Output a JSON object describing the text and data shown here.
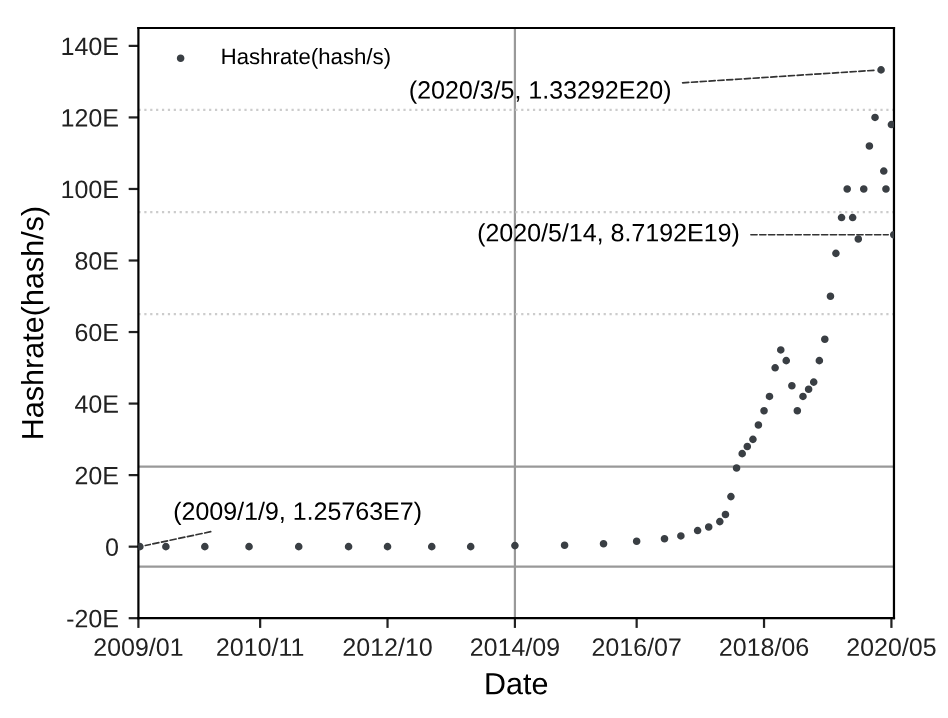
{
  "chart_data": {
    "type": "scatter",
    "xlabel": "Date",
    "ylabel": "Hashrate(hash/s)",
    "series": [
      {
        "name": "Hashrate(hash/s)",
        "color": "#3a3f44",
        "x": [
          "2009-01-09",
          "2009-06-01",
          "2010-01-01",
          "2010-09-01",
          "2011-06-01",
          "2012-03-01",
          "2012-10-01",
          "2013-06-01",
          "2014-01-01",
          "2014-09-01",
          "2015-06-01",
          "2016-01-01",
          "2016-07-01",
          "2016-12-01",
          "2017-03-01",
          "2017-06-01",
          "2017-08-01",
          "2017-10-01",
          "2017-11-01",
          "2017-12-01",
          "2018-01-01",
          "2018-02-01",
          "2018-03-01",
          "2018-04-01",
          "2018-05-01",
          "2018-06-01",
          "2018-07-01",
          "2018-08-01",
          "2018-09-01",
          "2018-10-01",
          "2018-11-01",
          "2018-12-01",
          "2019-01-01",
          "2019-02-01",
          "2019-03-01",
          "2019-04-01",
          "2019-05-01",
          "2019-06-01",
          "2019-07-01",
          "2019-08-01",
          "2019-09-01",
          "2019-10-01",
          "2019-11-01",
          "2019-12-01",
          "2020-01-01",
          "2020-02-01",
          "2020-03-05",
          "2020-03-20",
          "2020-04-01",
          "2020-05-01",
          "2020-05-14"
        ],
        "values": [
          1.25763e-11,
          0,
          0,
          0,
          0,
          0,
          0,
          0,
          0,
          0.3,
          0.4,
          0.8,
          1.5,
          2.2,
          3,
          4.5,
          5.5,
          7,
          9,
          14,
          22,
          26,
          28,
          30,
          34,
          38,
          42,
          50,
          55,
          52,
          45,
          38,
          42,
          44,
          46,
          52,
          58,
          70,
          82,
          92,
          100,
          92,
          86,
          100,
          112,
          120,
          133.292,
          105,
          100,
          118,
          87.192
        ]
      }
    ],
    "xlim": [
      "2009-01-01",
      "2020-05-15"
    ],
    "xticks": [
      {
        "value": "2009-01-01",
        "label": "2009/01"
      },
      {
        "value": "2010-11-01",
        "label": "2010/11"
      },
      {
        "value": "2012-10-01",
        "label": "2012/10"
      },
      {
        "value": "2014-09-01",
        "label": "2014/09"
      },
      {
        "value": "2016-07-01",
        "label": "2016/07"
      },
      {
        "value": "2018-06-01",
        "label": "2018/06"
      },
      {
        "value": "2020-05-01",
        "label": "2020/05"
      }
    ],
    "ylim": [
      -20,
      145
    ],
    "yticks": [
      {
        "value": -20,
        "label": "-20E"
      },
      0,
      {
        "value": 20,
        "label": "20E"
      },
      {
        "value": 40,
        "label": "40E"
      },
      {
        "value": 60,
        "label": "60E"
      },
      {
        "value": 80,
        "label": "80E"
      },
      {
        "value": 100,
        "label": "100E"
      },
      {
        "value": 120,
        "label": "120E"
      },
      {
        "value": 140,
        "label": "140E"
      }
    ],
    "ref_lines": [
      {
        "axis": "x",
        "value": "2014-09-01",
        "color": "#999999",
        "line_style": "solid"
      },
      {
        "axis": "y",
        "value": 122.1,
        "color": "#cccccc",
        "line_style": "dotted"
      },
      {
        "axis": "y",
        "value": 93.5,
        "color": "#cccccc",
        "line_style": "dotted"
      },
      {
        "axis": "y",
        "value": 65,
        "color": "#cccccc",
        "line_style": "dotted"
      },
      {
        "axis": "y",
        "value": 22.4,
        "color": "#999999",
        "line_style": "solid"
      },
      {
        "axis": "y",
        "value": -5.6,
        "color": "#999999",
        "line_style": "solid"
      }
    ],
    "annotations": [
      {
        "text": "(2009/1/9, 1.25763E7)",
        "x": "2009-01-09",
        "y": 1.25763e-11
      },
      {
        "text": "(2020/3/5, 1.33292E20)",
        "x": "2020-03-05",
        "y": 133.292
      },
      {
        "text": "(2020/5/14, 8.7192E19)",
        "x": "2020-05-14",
        "y": 87.192
      }
    ],
    "marker": "circle",
    "legend": "top left",
    "grid": false
  }
}
